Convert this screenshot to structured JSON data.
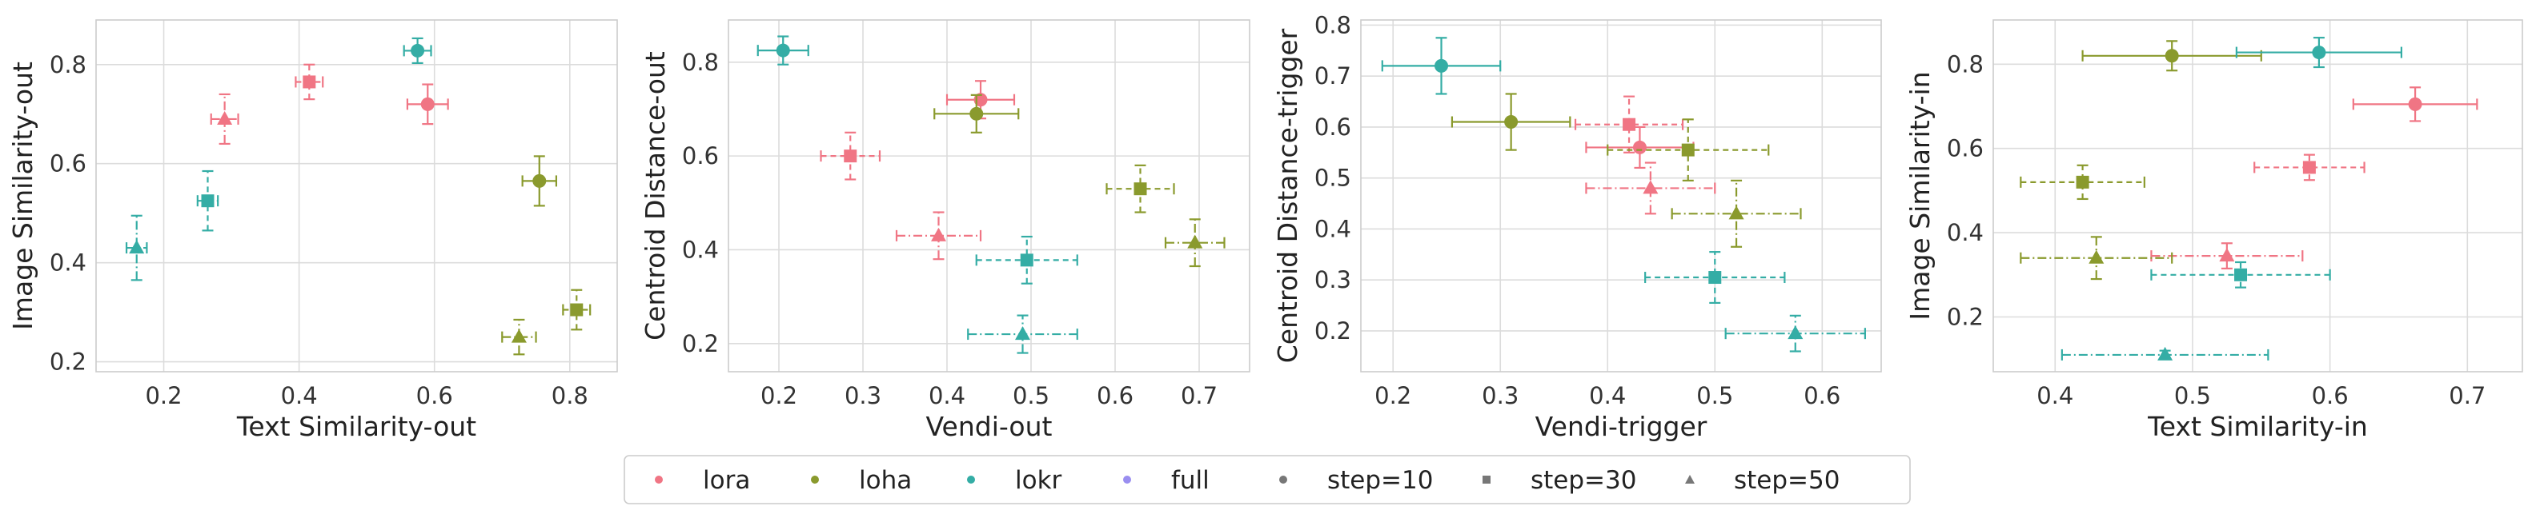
{
  "method_colors": {
    "lora": "#f07584",
    "loha": "#8a9a2d",
    "lokr": "#34ada5",
    "full": "#9a8ef0"
  },
  "legend": {
    "methods": [
      {
        "key": "lora",
        "label": "lora"
      },
      {
        "key": "loha",
        "label": "loha"
      },
      {
        "key": "lokr",
        "label": "lokr"
      },
      {
        "key": "full",
        "label": "full"
      }
    ],
    "steps": [
      {
        "key": "s10",
        "label": "step=10",
        "marker": "circle"
      },
      {
        "key": "s30",
        "label": "step=30",
        "marker": "square"
      },
      {
        "key": "s50",
        "label": "step=50",
        "marker": "triangle"
      }
    ]
  },
  "chart_data": [
    {
      "type": "scatter",
      "xlabel": "Text Similarity-out",
      "ylabel": "Image Similarity-out",
      "xlim": [
        0.1,
        0.87
      ],
      "ylim": [
        0.18,
        0.89
      ],
      "xticks": [
        0.2,
        0.4,
        0.6,
        0.8
      ],
      "yticks": [
        0.2,
        0.4,
        0.6,
        0.8
      ],
      "grid": true,
      "points": [
        {
          "method": "lora",
          "step": 10,
          "x": 0.59,
          "y": 0.72,
          "xerr": 0.03,
          "yerr": 0.04
        },
        {
          "method": "lora",
          "step": 30,
          "x": 0.415,
          "y": 0.765,
          "xerr": 0.02,
          "yerr": 0.035
        },
        {
          "method": "lora",
          "step": 50,
          "x": 0.29,
          "y": 0.69,
          "xerr": 0.02,
          "yerr": 0.05
        },
        {
          "method": "loha",
          "step": 10,
          "x": 0.755,
          "y": 0.565,
          "xerr": 0.025,
          "yerr": 0.05
        },
        {
          "method": "loha",
          "step": 30,
          "x": 0.81,
          "y": 0.305,
          "xerr": 0.02,
          "yerr": 0.04
        },
        {
          "method": "loha",
          "step": 50,
          "x": 0.725,
          "y": 0.25,
          "xerr": 0.025,
          "yerr": 0.035
        },
        {
          "method": "lokr",
          "step": 10,
          "x": 0.575,
          "y": 0.828,
          "xerr": 0.02,
          "yerr": 0.025
        },
        {
          "method": "lokr",
          "step": 30,
          "x": 0.265,
          "y": 0.525,
          "xerr": 0.015,
          "yerr": 0.06
        },
        {
          "method": "lokr",
          "step": 50,
          "x": 0.16,
          "y": 0.43,
          "xerr": 0.015,
          "yerr": 0.065
        }
      ]
    },
    {
      "type": "scatter",
      "xlabel": "Vendi-out",
      "ylabel": "Centroid Distance-out",
      "xlim": [
        0.14,
        0.76
      ],
      "ylim": [
        0.14,
        0.89
      ],
      "xticks": [
        0.2,
        0.3,
        0.4,
        0.5,
        0.6,
        0.7
      ],
      "yticks": [
        0.2,
        0.4,
        0.6,
        0.8
      ],
      "grid": true,
      "points": [
        {
          "method": "lora",
          "step": 10,
          "x": 0.44,
          "y": 0.72,
          "xerr": 0.04,
          "yerr": 0.04
        },
        {
          "method": "lora",
          "step": 30,
          "x": 0.285,
          "y": 0.6,
          "xerr": 0.035,
          "yerr": 0.05
        },
        {
          "method": "lora",
          "step": 50,
          "x": 0.39,
          "y": 0.43,
          "xerr": 0.05,
          "yerr": 0.05
        },
        {
          "method": "loha",
          "step": 10,
          "x": 0.435,
          "y": 0.69,
          "xerr": 0.05,
          "yerr": 0.04
        },
        {
          "method": "loha",
          "step": 30,
          "x": 0.63,
          "y": 0.53,
          "xerr": 0.04,
          "yerr": 0.05
        },
        {
          "method": "loha",
          "step": 50,
          "x": 0.695,
          "y": 0.415,
          "xerr": 0.035,
          "yerr": 0.05
        },
        {
          "method": "lokr",
          "step": 10,
          "x": 0.205,
          "y": 0.825,
          "xerr": 0.03,
          "yerr": 0.03
        },
        {
          "method": "lokr",
          "step": 30,
          "x": 0.495,
          "y": 0.378,
          "xerr": 0.06,
          "yerr": 0.05
        },
        {
          "method": "lokr",
          "step": 50,
          "x": 0.49,
          "y": 0.22,
          "xerr": 0.065,
          "yerr": 0.04
        }
      ]
    },
    {
      "type": "scatter",
      "xlabel": "Vendi-trigger",
      "ylabel": "Centroid Distance-trigger",
      "xlim": [
        0.17,
        0.655
      ],
      "ylim": [
        0.12,
        0.81
      ],
      "xticks": [
        0.2,
        0.3,
        0.4,
        0.5,
        0.6
      ],
      "yticks": [
        0.2,
        0.3,
        0.4,
        0.5,
        0.6,
        0.7,
        0.8
      ],
      "grid": true,
      "points": [
        {
          "method": "lora",
          "step": 10,
          "x": 0.43,
          "y": 0.56,
          "xerr": 0.05,
          "yerr": 0.04
        },
        {
          "method": "lora",
          "step": 30,
          "x": 0.42,
          "y": 0.605,
          "xerr": 0.05,
          "yerr": 0.055
        },
        {
          "method": "lora",
          "step": 50,
          "x": 0.44,
          "y": 0.48,
          "xerr": 0.06,
          "yerr": 0.05
        },
        {
          "method": "loha",
          "step": 10,
          "x": 0.31,
          "y": 0.61,
          "xerr": 0.055,
          "yerr": 0.055
        },
        {
          "method": "loha",
          "step": 30,
          "x": 0.475,
          "y": 0.555,
          "xerr": 0.075,
          "yerr": 0.06
        },
        {
          "method": "loha",
          "step": 50,
          "x": 0.52,
          "y": 0.43,
          "xerr": 0.06,
          "yerr": 0.065
        },
        {
          "method": "lokr",
          "step": 10,
          "x": 0.245,
          "y": 0.72,
          "xerr": 0.055,
          "yerr": 0.055
        },
        {
          "method": "lokr",
          "step": 30,
          "x": 0.5,
          "y": 0.305,
          "xerr": 0.065,
          "yerr": 0.05
        },
        {
          "method": "lokr",
          "step": 50,
          "x": 0.575,
          "y": 0.195,
          "xerr": 0.065,
          "yerr": 0.035
        }
      ]
    },
    {
      "type": "scatter",
      "xlabel": "Text Similarity-in",
      "ylabel": "Image Similarity-in",
      "xlim": [
        0.355,
        0.74
      ],
      "ylim": [
        0.07,
        0.905
      ],
      "xticks": [
        0.4,
        0.5,
        0.6,
        0.7
      ],
      "yticks": [
        0.2,
        0.4,
        0.6,
        0.8
      ],
      "grid": true,
      "points": [
        {
          "method": "lora",
          "step": 10,
          "x": 0.662,
          "y": 0.705,
          "xerr": 0.045,
          "yerr": 0.04
        },
        {
          "method": "lora",
          "step": 30,
          "x": 0.585,
          "y": 0.555,
          "xerr": 0.04,
          "yerr": 0.03
        },
        {
          "method": "lora",
          "step": 50,
          "x": 0.525,
          "y": 0.345,
          "xerr": 0.055,
          "yerr": 0.03
        },
        {
          "method": "loha",
          "step": 10,
          "x": 0.485,
          "y": 0.82,
          "xerr": 0.065,
          "yerr": 0.035
        },
        {
          "method": "loha",
          "step": 30,
          "x": 0.42,
          "y": 0.52,
          "xerr": 0.045,
          "yerr": 0.04
        },
        {
          "method": "loha",
          "step": 50,
          "x": 0.43,
          "y": 0.34,
          "xerr": 0.055,
          "yerr": 0.05
        },
        {
          "method": "lokr",
          "step": 10,
          "x": 0.592,
          "y": 0.828,
          "xerr": 0.06,
          "yerr": 0.035
        },
        {
          "method": "lokr",
          "step": 30,
          "x": 0.535,
          "y": 0.3,
          "xerr": 0.065,
          "yerr": 0.03
        },
        {
          "method": "lokr",
          "step": 50,
          "x": 0.48,
          "y": 0.11,
          "xerr": 0.075,
          "yerr": 0.01
        }
      ]
    }
  ]
}
